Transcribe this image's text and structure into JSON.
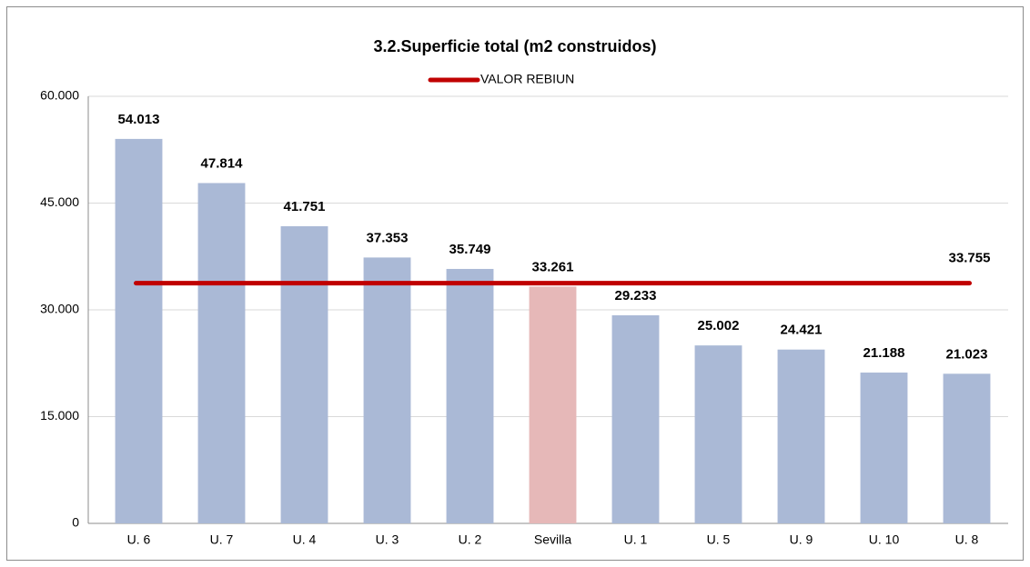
{
  "chart_data": {
    "type": "bar",
    "title": "3.2.Superficie total (m2 construidos)",
    "categories": [
      "U. 6",
      "U. 7",
      "U. 4",
      "U. 3",
      "U. 2",
      "Sevilla",
      "U. 1",
      "U. 5",
      "U. 9",
      "U. 10",
      "U. 8"
    ],
    "values": [
      54013,
      47814,
      41751,
      37353,
      35749,
      33261,
      29233,
      25002,
      24421,
      21188,
      21023
    ],
    "value_labels": [
      "54.013",
      "47.814",
      "41.751",
      "37.353",
      "35.749",
      "33.261",
      "29.233",
      "25.002",
      "24.421",
      "21.188",
      "21.023"
    ],
    "colors": [
      "#aab9d6",
      "#aab9d6",
      "#aab9d6",
      "#aab9d6",
      "#aab9d6",
      "#e6b8b8",
      "#aab9d6",
      "#aab9d6",
      "#aab9d6",
      "#aab9d6",
      "#aab9d6"
    ],
    "reference_line": {
      "name": "VALOR REBIUN",
      "value": 33755,
      "value_label": "33.755",
      "color": "#c00000"
    },
    "ylim": [
      0,
      60000
    ],
    "yticks": [
      0,
      {
        "value": 15000,
        "label": "15.000"
      },
      {
        "value": 30000,
        "label": "30.000"
      },
      {
        "value": 45000,
        "label": "45.000"
      },
      {
        "value": 60000,
        "label": "60.000"
      }
    ],
    "grid": true
  }
}
